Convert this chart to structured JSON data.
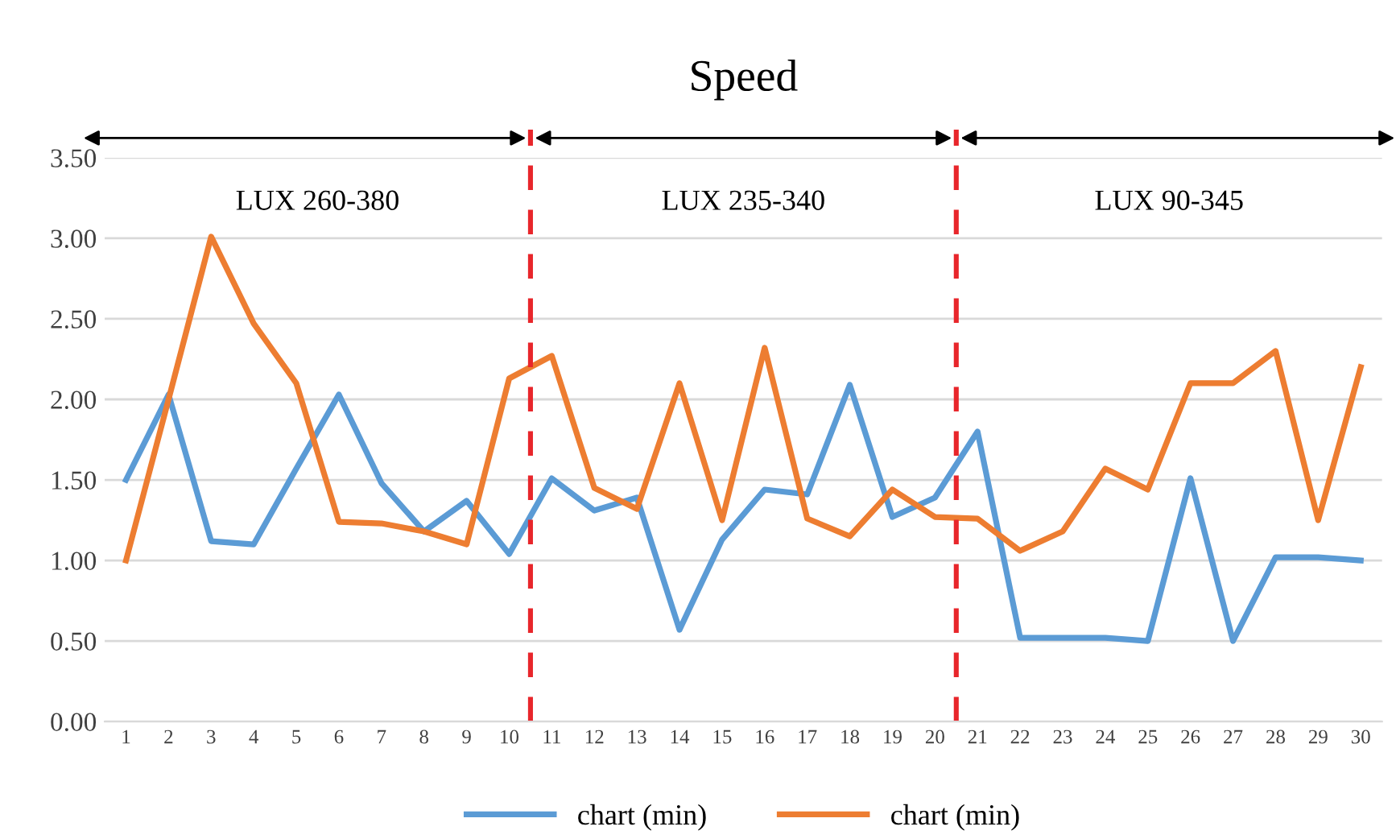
{
  "chart_data": {
    "type": "line",
    "title": "Speed",
    "x": [
      1,
      2,
      3,
      4,
      5,
      6,
      7,
      8,
      9,
      10,
      11,
      12,
      13,
      14,
      15,
      16,
      17,
      18,
      19,
      20,
      21,
      22,
      23,
      24,
      25,
      26,
      27,
      28,
      29,
      30
    ],
    "series": [
      {
        "name": "chart (min)",
        "color": "#5b9bd5",
        "values": [
          1.5,
          2.03,
          1.12,
          1.1,
          1.57,
          2.03,
          1.48,
          1.18,
          1.37,
          1.04,
          1.51,
          1.31,
          1.39,
          0.57,
          1.13,
          1.44,
          1.41,
          2.09,
          1.27,
          1.39,
          1.8,
          0.52,
          0.52,
          0.52,
          0.5,
          1.51,
          0.5,
          1.02,
          1.02,
          1.0
        ]
      },
      {
        "name": "chart (min)",
        "color": "#ed7d31",
        "values": [
          1.0,
          2.0,
          3.01,
          2.47,
          2.1,
          1.24,
          1.23,
          1.18,
          1.1,
          2.13,
          2.27,
          1.45,
          1.32,
          2.1,
          1.25,
          2.32,
          1.26,
          1.15,
          1.44,
          1.27,
          1.26,
          1.06,
          1.18,
          1.57,
          1.44,
          2.1,
          2.1,
          2.3,
          1.25,
          2.2
        ]
      }
    ],
    "xlim": [
      0.5,
      30.5
    ],
    "xticks": [
      1,
      2,
      3,
      4,
      5,
      6,
      7,
      8,
      9,
      10,
      11,
      12,
      13,
      14,
      15,
      16,
      17,
      18,
      19,
      20,
      21,
      22,
      23,
      24,
      25,
      26,
      27,
      28,
      29,
      30
    ],
    "ylim": [
      0,
      3.5
    ],
    "yticks": [
      {
        "value": 0,
        "label": "0.00"
      },
      {
        "value": 0.5,
        "label": "0.50"
      },
      {
        "value": 1,
        "label": "1.00"
      },
      {
        "value": 1.5,
        "label": "1.50"
      },
      {
        "value": 2,
        "label": "2.00"
      },
      {
        "value": 2.5,
        "label": "2.50"
      },
      {
        "value": 3,
        "label": "3.00"
      },
      {
        "value": 3.5,
        "label": "3.50"
      }
    ],
    "ref_lines": [
      {
        "axis": "x",
        "value": 10.5,
        "color": "#e8262b",
        "line_style": "dashed"
      },
      {
        "axis": "x",
        "value": 20.5,
        "color": "#e8262b",
        "line_style": "dashed"
      }
    ],
    "annotations": [
      "LUX 260-380",
      "LUX 235-340",
      "LUX 90-345"
    ],
    "grid": "y",
    "legend": "bottom",
    "marker": "none",
    "line_style": "solid"
  }
}
